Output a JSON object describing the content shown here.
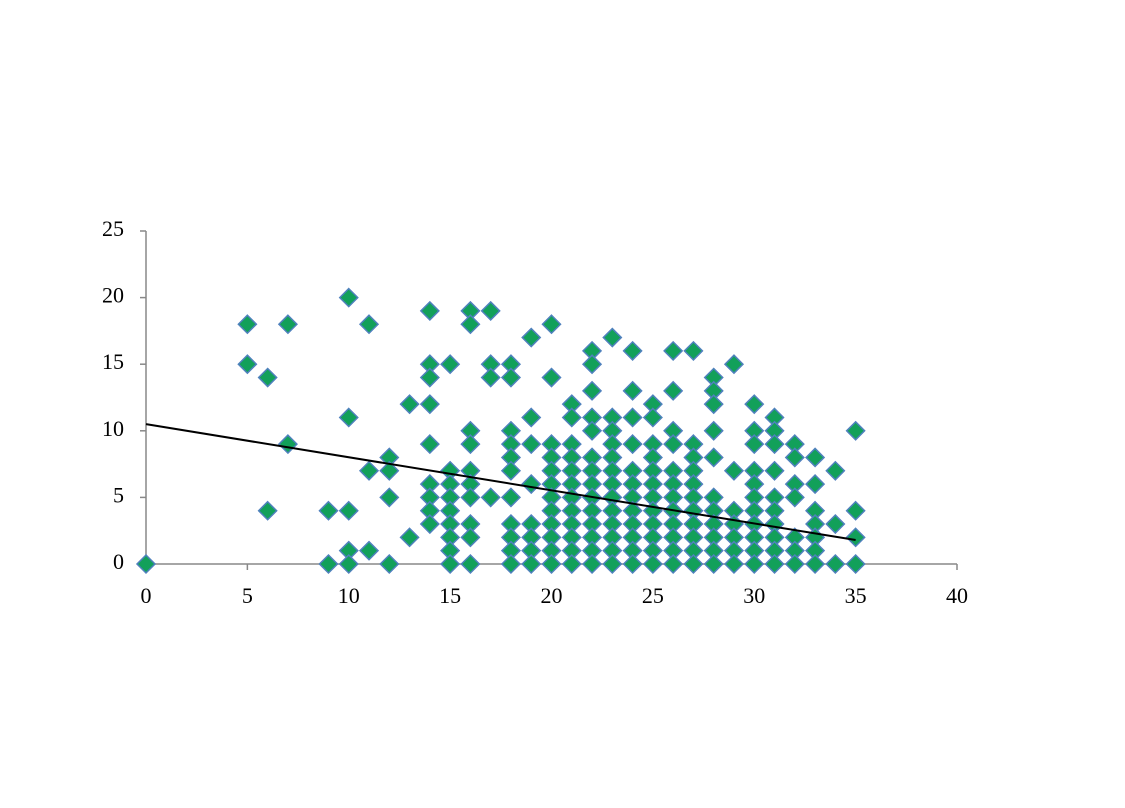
{
  "chart_data": {
    "type": "scatter",
    "xlim": [
      0,
      40
    ],
    "xticks": [
      0,
      5,
      10,
      15,
      20,
      25,
      30,
      35,
      40
    ],
    "ylim": [
      0,
      25
    ],
    "yticks": [
      0,
      5,
      10,
      15,
      20,
      25
    ],
    "grid": false,
    "series": [
      {
        "color": "#12a05a",
        "x": [
          0,
          5,
          5,
          6,
          6,
          7,
          7,
          9,
          9,
          10,
          10,
          10,
          10,
          10,
          11,
          11,
          11,
          12,
          12,
          12,
          12,
          13,
          13,
          14,
          14,
          14,
          14,
          14,
          14,
          14,
          14,
          14,
          15,
          15,
          15,
          15,
          15,
          15,
          15,
          15,
          15,
          16,
          16,
          16,
          16,
          16,
          16,
          16,
          16,
          16,
          16,
          17,
          17,
          17,
          17,
          18,
          18,
          18,
          18,
          18,
          18,
          18,
          18,
          18,
          18,
          18,
          19,
          19,
          19,
          19,
          19,
          19,
          19,
          19,
          20,
          20,
          20,
          20,
          20,
          20,
          20,
          20,
          20,
          20,
          20,
          20,
          21,
          21,
          21,
          21,
          21,
          21,
          21,
          21,
          21,
          21,
          21,
          21,
          22,
          22,
          22,
          22,
          22,
          22,
          22,
          22,
          22,
          22,
          22,
          22,
          22,
          22,
          23,
          23,
          23,
          23,
          23,
          23,
          23,
          23,
          23,
          23,
          23,
          23,
          23,
          24,
          24,
          24,
          24,
          24,
          24,
          24,
          24,
          24,
          24,
          24,
          24,
          25,
          25,
          25,
          25,
          25,
          25,
          25,
          25,
          25,
          25,
          25,
          25,
          26,
          26,
          26,
          26,
          26,
          26,
          26,
          26,
          26,
          26,
          26,
          26,
          27,
          27,
          27,
          27,
          27,
          27,
          27,
          27,
          27,
          27,
          27,
          28,
          28,
          28,
          28,
          28,
          28,
          28,
          28,
          28,
          28,
          28,
          29,
          29,
          29,
          29,
          29,
          29,
          29,
          30,
          30,
          30,
          30,
          30,
          30,
          30,
          30,
          30,
          30,
          30,
          31,
          31,
          31,
          31,
          31,
          31,
          31,
          31,
          31,
          31,
          32,
          32,
          32,
          32,
          32,
          32,
          32,
          33,
          33,
          33,
          33,
          33,
          33,
          33,
          34,
          34,
          34,
          35,
          35,
          35,
          35
        ],
        "values": [
          0,
          18,
          15,
          14,
          4,
          18,
          9,
          4,
          0,
          20,
          11,
          4,
          1,
          0,
          18,
          7,
          1,
          8,
          7,
          5,
          0,
          12,
          2,
          19,
          15,
          14,
          12,
          9,
          6,
          5,
          4,
          3,
          15,
          7,
          6,
          5,
          4,
          3,
          2,
          1,
          0,
          19,
          18,
          10,
          9,
          7,
          6,
          5,
          3,
          2,
          0,
          19,
          15,
          14,
          5,
          15,
          14,
          10,
          9,
          8,
          7,
          5,
          3,
          2,
          1,
          0,
          17,
          11,
          9,
          6,
          3,
          2,
          1,
          0,
          18,
          14,
          9,
          8,
          7,
          6,
          5,
          4,
          3,
          2,
          1,
          0,
          12,
          11,
          9,
          8,
          7,
          6,
          5,
          4,
          3,
          2,
          1,
          0,
          16,
          15,
          13,
          11,
          10,
          8,
          7,
          6,
          5,
          4,
          3,
          2,
          1,
          0,
          17,
          11,
          10,
          9,
          8,
          7,
          6,
          5,
          4,
          3,
          2,
          1,
          0,
          16,
          13,
          11,
          9,
          7,
          6,
          5,
          4,
          3,
          2,
          1,
          0,
          12,
          11,
          9,
          8,
          7,
          6,
          5,
          4,
          3,
          2,
          1,
          0,
          16,
          13,
          10,
          9,
          7,
          6,
          5,
          4,
          3,
          2,
          1,
          0,
          16,
          9,
          8,
          7,
          6,
          5,
          4,
          3,
          2,
          1,
          0,
          14,
          13,
          12,
          10,
          8,
          5,
          4,
          3,
          2,
          1,
          0,
          15,
          7,
          4,
          3,
          2,
          1,
          0,
          12,
          10,
          9,
          7,
          6,
          5,
          4,
          3,
          2,
          1,
          0,
          11,
          10,
          9,
          7,
          5,
          4,
          3,
          2,
          1,
          0,
          9,
          8,
          6,
          5,
          2,
          1,
          0,
          8,
          6,
          4,
          3,
          2,
          1,
          0,
          7,
          3,
          0,
          10,
          4,
          2,
          0
        ]
      }
    ],
    "trendline": {
      "color": "#000000",
      "x": [
        0,
        35
      ],
      "values": [
        10.5,
        1.8
      ]
    }
  }
}
